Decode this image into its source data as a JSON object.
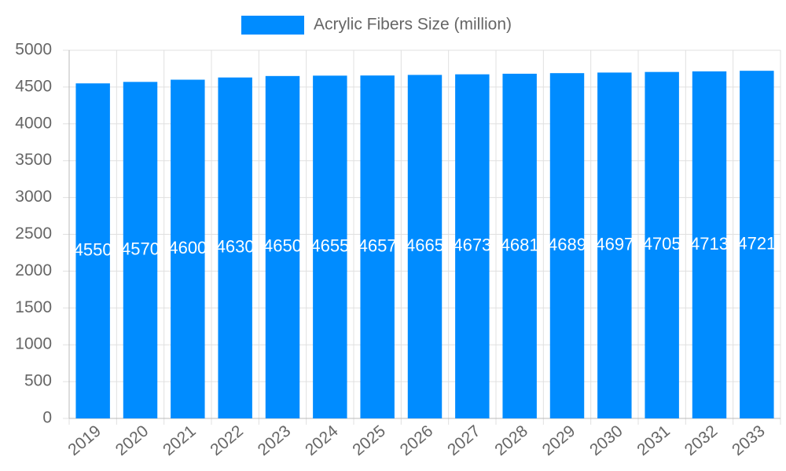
{
  "chart_data": {
    "type": "bar",
    "categories": [
      "2019",
      "2020",
      "2021",
      "2022",
      "2023",
      "2024",
      "2025",
      "2026",
      "2027",
      "2028",
      "2029",
      "2030",
      "2031",
      "2032",
      "2033"
    ],
    "series": [
      {
        "name": "Acrylic Fibers Size (million)",
        "color": "#008cff",
        "values": [
          4550,
          4570,
          4600,
          4630,
          4650,
          4655,
          4657,
          4665,
          4673,
          4681,
          4689,
          4697,
          4705,
          4713,
          4721
        ]
      }
    ],
    "ylim": [
      0,
      5000
    ],
    "yticks": [
      0,
      500,
      1000,
      1500,
      2000,
      2500,
      3000,
      3500,
      4000,
      4500,
      5000
    ],
    "grid": true,
    "legend": "top"
  }
}
